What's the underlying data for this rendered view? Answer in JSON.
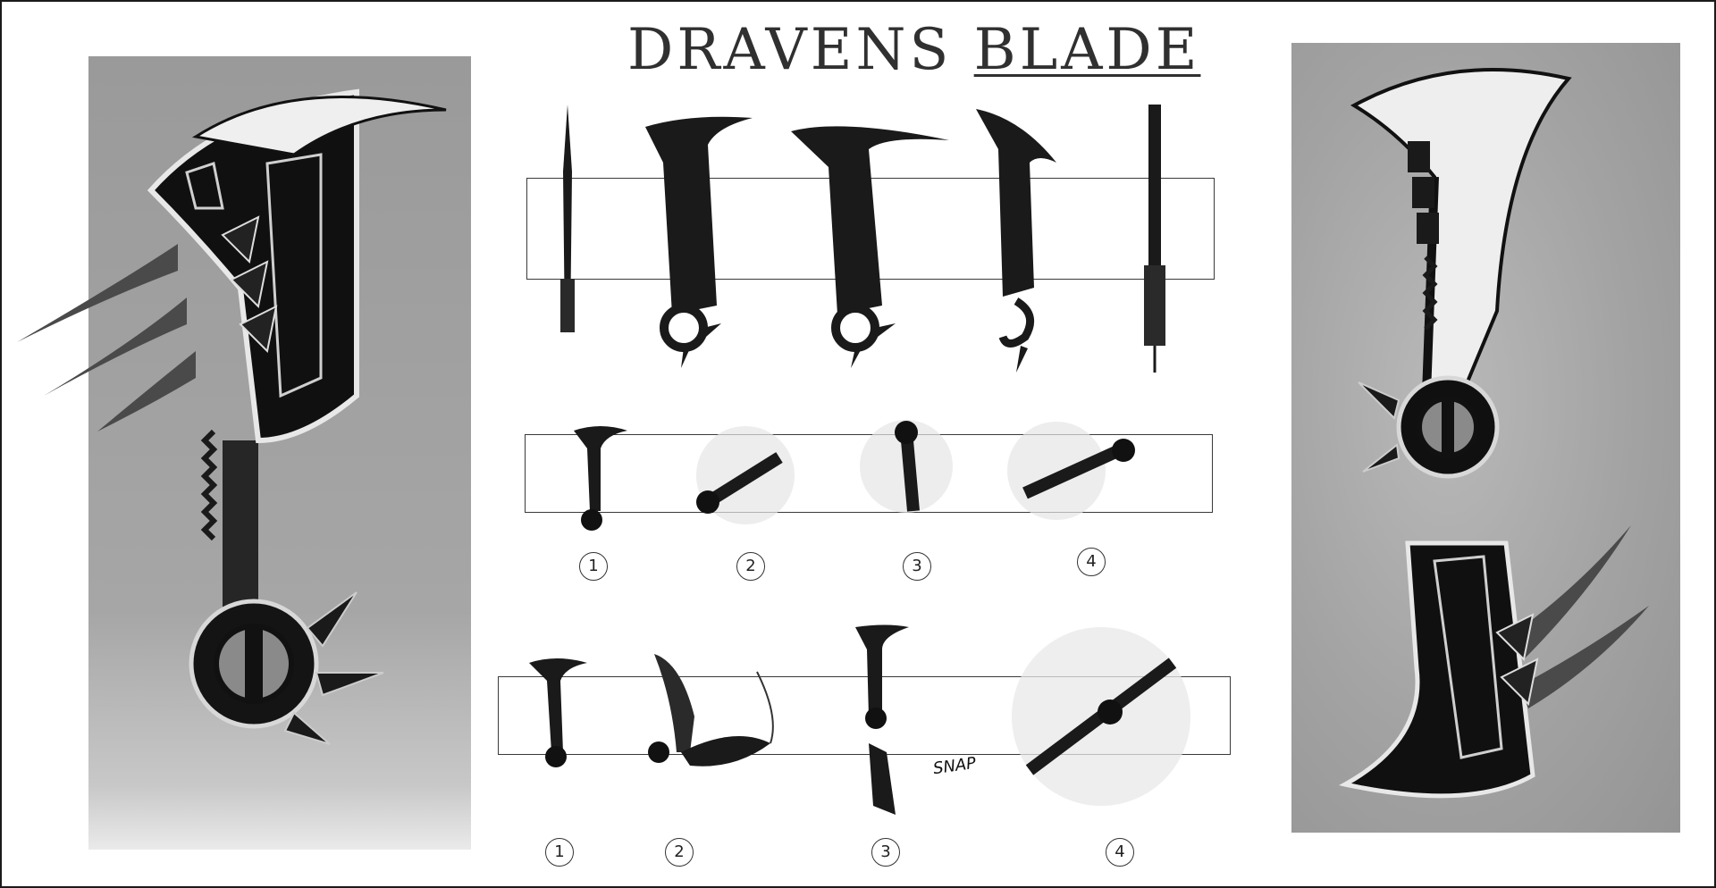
{
  "title": {
    "part_a": "DRAVENS",
    "part_b": "BLADE"
  },
  "row2_steps": [
    "1",
    "2",
    "3",
    "4"
  ],
  "row3_steps": [
    "1",
    "2",
    "3",
    "4"
  ],
  "snap_label": "SNAP",
  "colors": {
    "ink": "#111111",
    "panel_gray": "#a3a3a3",
    "highlight": "#f2f2f2"
  }
}
